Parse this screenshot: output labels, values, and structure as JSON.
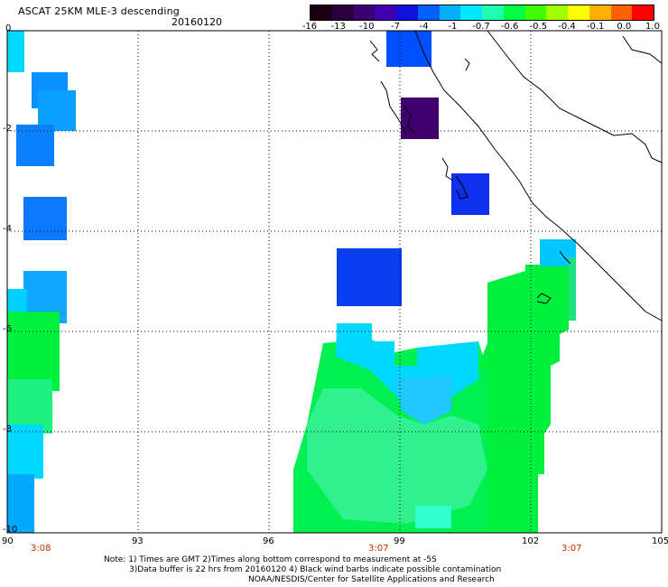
{
  "header": {
    "title": "ASCAT 25KM MLE-3 descending",
    "date": "20160120"
  },
  "colorbar": {
    "labels": [
      "-16",
      "-13",
      "-10",
      "-7",
      "-4",
      "-1",
      "-0.7",
      "-0.6",
      "-0.5",
      "-0.4",
      "-0.1",
      "0.0",
      "1.0"
    ],
    "colors": [
      "#1a0010",
      "#2a003a",
      "#3c0070",
      "#4000b0",
      "#1010e0",
      "#0060ff",
      "#00b0ff",
      "#00e8ff",
      "#20ffb0",
      "#00ff40",
      "#40ff00",
      "#a0ff00",
      "#ffff00",
      "#ffb000",
      "#ff6000",
      "#ff0000"
    ]
  },
  "axes": {
    "y_ticks": [
      "0",
      "-2",
      "-4",
      "-6",
      "-8",
      "-10"
    ],
    "x_ticks": [
      "90",
      "93",
      "96",
      "99",
      "102",
      "105"
    ],
    "times": [
      "3:08",
      "3:07",
      "3:07"
    ]
  },
  "note": {
    "line1": "Note: 1) Times are GMT 2)Times along bottom correspond to measurement at -5S",
    "line2": "3)Data buffer is 22 hrs from 20160120 4) Black wind barbs indicate possible contamination",
    "line3": "NOAA/NESDIS/Center for Satellite Applications and Research"
  }
}
